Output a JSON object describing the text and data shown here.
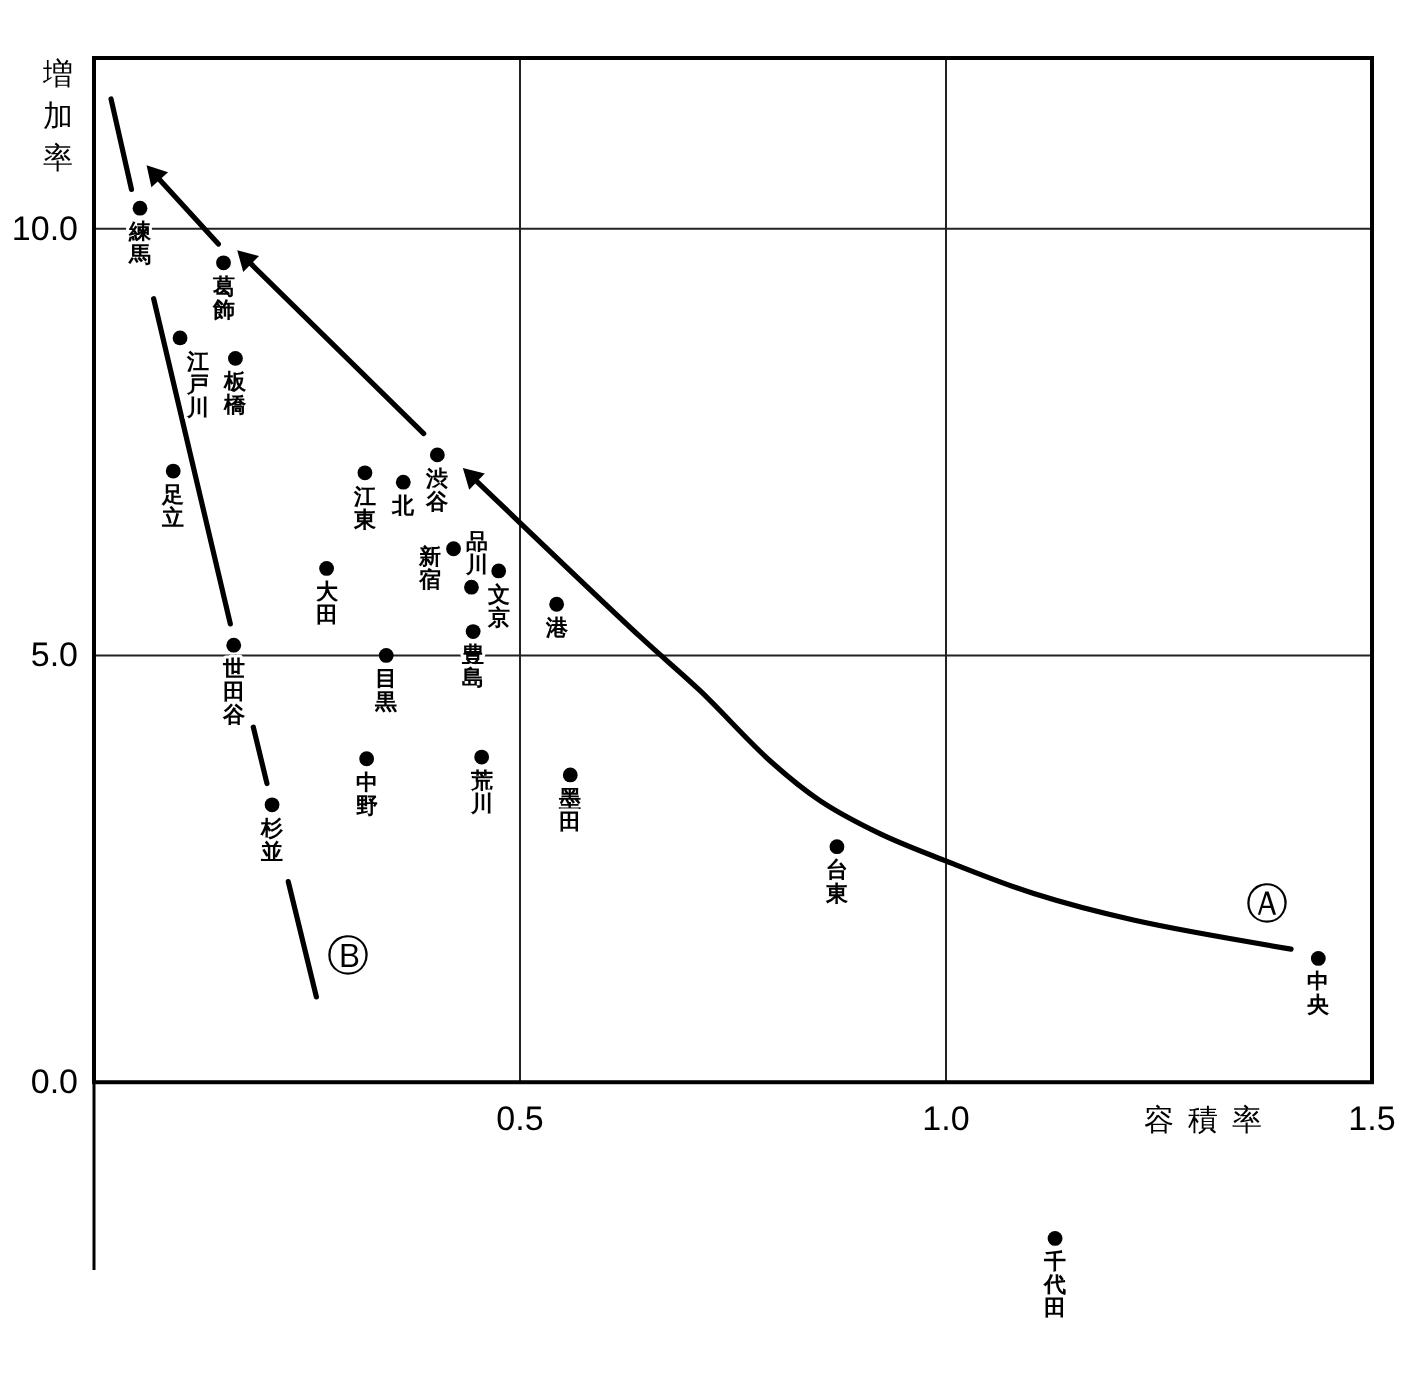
{
  "chart_data": {
    "type": "scatter",
    "xlabel": "容積率",
    "ylabel": "増加率",
    "xlim": [
      0,
      1.5
    ],
    "ylim": [
      -2.2,
      12
    ],
    "xticks": [
      {
        "value": 0.5,
        "label": "0.5"
      },
      {
        "value": 1,
        "label": "1.0"
      },
      {
        "value": 1.5,
        "label": "1.5"
      }
    ],
    "yticks": [
      {
        "value": 0,
        "label": "0.0"
      },
      {
        "value": 5,
        "label": "5.0"
      },
      {
        "value": 10,
        "label": "10.0"
      }
    ],
    "grid": true,
    "marker": "circle",
    "series": [
      {
        "type": "line",
        "name": "Ⓐ",
        "color": "#000000",
        "marker": "none",
        "x": [
          1.405,
          1.22,
          1.103,
          0.998,
          0.923,
          0.852,
          0.793,
          0.711,
          0.641,
          0.444,
          null,
          0.387,
          0.179,
          null,
          0.146,
          0.072
        ],
        "values": [
          1.56,
          1.9,
          2.21,
          2.6,
          2.91,
          3.3,
          3.77,
          4.59,
          5.22,
          7.09,
          null,
          7.6,
          9.64,
          null,
          9.82,
          10.63
        ]
      },
      {
        "type": "line",
        "name": "Ⓑ",
        "color": "#000000",
        "marker": "none",
        "x": [
          0.02,
          0.044,
          null,
          0.07,
          0.16,
          null,
          0.187,
          0.203,
          null,
          0.228,
          0.261
        ],
        "values": [
          11.52,
          10.46,
          null,
          9.18,
          5.37,
          null,
          4.16,
          3.5,
          null,
          2.35,
          1.0
        ]
      },
      {
        "type": "scatter",
        "marker": "triangle",
        "color": "#000000",
        "x": [
          0.444,
          0.179,
          0.072
        ],
        "values": [
          7.09,
          9.64,
          10.63
        ]
      },
      {
        "name": "練馬",
        "color": "#000000",
        "x": [
          0.054
        ],
        "values": [
          10.24
        ]
      },
      {
        "name": "葛飾",
        "color": "#000000",
        "x": [
          0.152
        ],
        "values": [
          9.6
        ]
      },
      {
        "name": "江戸川",
        "color": "#000000",
        "x": [
          0.101
        ],
        "values": [
          8.72
        ]
      },
      {
        "name": "板橋",
        "color": "#000000",
        "x": [
          0.166
        ],
        "values": [
          8.48
        ]
      },
      {
        "name": "足立",
        "color": "#000000",
        "x": [
          0.093
        ],
        "values": [
          7.16
        ]
      },
      {
        "name": "江東",
        "color": "#000000",
        "x": [
          0.318
        ],
        "values": [
          7.14
        ]
      },
      {
        "name": "北",
        "color": "#000000",
        "x": [
          0.363
        ],
        "values": [
          7.03
        ]
      },
      {
        "name": "渋谷",
        "color": "#000000",
        "x": [
          0.403
        ],
        "values": [
          7.35
        ]
      },
      {
        "name": "新宿",
        "color": "#000000",
        "x": [
          0.422
        ],
        "values": [
          6.25
        ]
      },
      {
        "name": "品川",
        "color": "#000000",
        "x": [
          0.443
        ],
        "values": [
          5.8
        ]
      },
      {
        "name": "文京",
        "color": "#000000",
        "x": [
          0.475
        ],
        "values": [
          5.99
        ]
      },
      {
        "name": "港",
        "color": "#000000",
        "x": [
          0.543
        ],
        "values": [
          5.6
        ]
      },
      {
        "name": "大田",
        "color": "#000000",
        "x": [
          0.273
        ],
        "values": [
          6.02
        ]
      },
      {
        "name": "豊島",
        "color": "#000000",
        "x": [
          0.445
        ],
        "values": [
          5.28
        ]
      },
      {
        "name": "世田谷",
        "color": "#000000",
        "x": [
          0.164
        ],
        "values": [
          5.12
        ]
      },
      {
        "name": "目黒",
        "color": "#000000",
        "x": [
          0.343
        ],
        "values": [
          5.0
        ]
      },
      {
        "name": "中野",
        "color": "#000000",
        "x": [
          0.32
        ],
        "values": [
          3.79
        ]
      },
      {
        "name": "荒川",
        "color": "#000000",
        "x": [
          0.455
        ],
        "values": [
          3.81
        ]
      },
      {
        "name": "墨田",
        "color": "#000000",
        "x": [
          0.559
        ],
        "values": [
          3.6
        ]
      },
      {
        "name": "杉並",
        "color": "#000000",
        "x": [
          0.209
        ],
        "values": [
          3.25
        ]
      },
      {
        "name": "台東",
        "color": "#000000",
        "x": [
          0.872
        ],
        "values": [
          2.76
        ]
      },
      {
        "name": "中央",
        "color": "#000000",
        "x": [
          1.437
        ],
        "values": [
          1.45
        ]
      },
      {
        "name": "千代田",
        "color": "#000000",
        "x": [
          1.128
        ],
        "values": [
          -1.83
        ]
      }
    ]
  }
}
